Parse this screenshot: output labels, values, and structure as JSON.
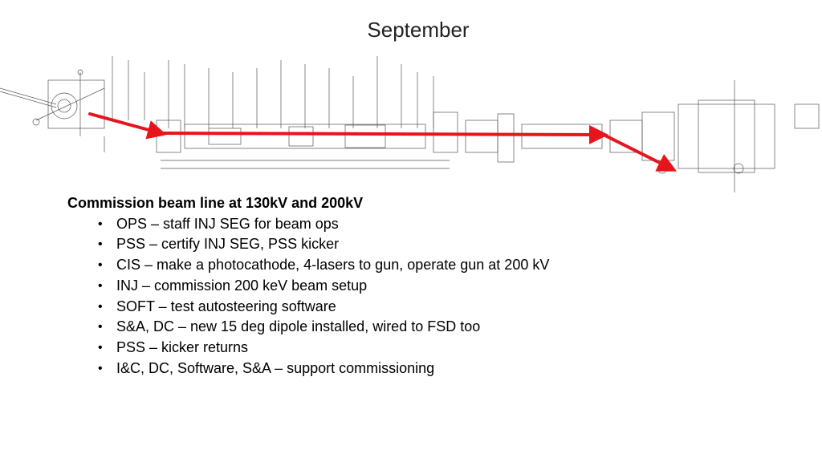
{
  "slide": {
    "title": "September",
    "heading": "Commission beam line at 130kV and 200kV",
    "bullets": [
      "OPS – staff INJ SEG for beam ops",
      "PSS – certify INJ SEG, PSS kicker",
      "CIS – make a photocathode, 4-lasers to gun, operate gun at 200 kV",
      "INJ – commission 200 keV beam setup",
      "SOFT – test autosteering software",
      "S&A, DC – new 15 deg dipole installed, wired to FSD too",
      "PSS – kicker returns",
      "I&C, DC, Software, S&A – support commissioning"
    ]
  },
  "colors": {
    "beam_arrow": "#e8141c",
    "drawing_line": "#555555"
  }
}
